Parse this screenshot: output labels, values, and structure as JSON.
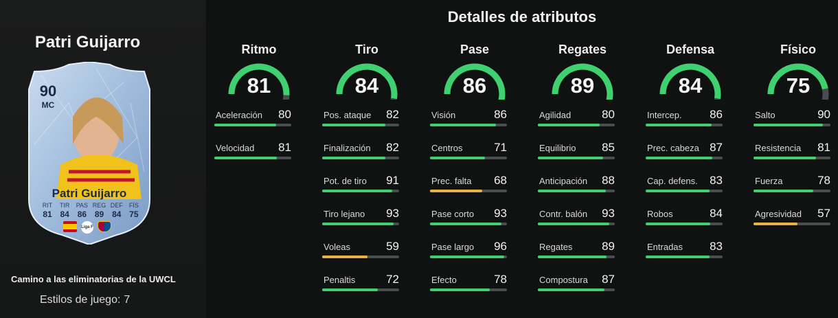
{
  "player": {
    "name": "Patri Guijarro",
    "card": {
      "rating": "90",
      "position": "MC",
      "name": "Patri Guijarro",
      "stat_labels": [
        "RIT",
        "TIR",
        "PAS",
        "REG",
        "DEF",
        "FÍS"
      ],
      "stat_values": [
        "81",
        "84",
        "86",
        "89",
        "84",
        "75"
      ],
      "league_logo_text": "Liga F"
    },
    "objective": "Camino a las eliminatorias de la UWCL",
    "playstyles_label": "Estilos de juego:",
    "playstyles_value": "7"
  },
  "title": "Detalles de atributos",
  "colors": {
    "high": "#3fd070",
    "mid": "#e6b43c",
    "track": "#4a4d4d",
    "background": "#101111"
  },
  "categories": [
    {
      "name": "Ritmo",
      "value": 81,
      "stats": [
        {
          "name": "Aceleración",
          "value": 80
        },
        {
          "name": "Velocidad",
          "value": 81
        }
      ]
    },
    {
      "name": "Tiro",
      "value": 84,
      "stats": [
        {
          "name": "Pos. ataque",
          "value": 82
        },
        {
          "name": "Finalización",
          "value": 82
        },
        {
          "name": "Pot. de tiro",
          "value": 91
        },
        {
          "name": "Tiro lejano",
          "value": 93
        },
        {
          "name": "Voleas",
          "value": 59
        },
        {
          "name": "Penaltis",
          "value": 72
        }
      ]
    },
    {
      "name": "Pase",
      "value": 86,
      "stats": [
        {
          "name": "Visión",
          "value": 86
        },
        {
          "name": "Centros",
          "value": 71
        },
        {
          "name": "Prec. falta",
          "value": 68
        },
        {
          "name": "Pase corto",
          "value": 93
        },
        {
          "name": "Pase largo",
          "value": 96
        },
        {
          "name": "Efecto",
          "value": 78
        }
      ]
    },
    {
      "name": "Regates",
      "value": 89,
      "stats": [
        {
          "name": "Agilidad",
          "value": 80
        },
        {
          "name": "Equilibrio",
          "value": 85
        },
        {
          "name": "Anticipación",
          "value": 88
        },
        {
          "name": "Contr. balón",
          "value": 93
        },
        {
          "name": "Regates",
          "value": 89
        },
        {
          "name": "Compostura",
          "value": 87
        }
      ]
    },
    {
      "name": "Defensa",
      "value": 84,
      "stats": [
        {
          "name": "Intercep.",
          "value": 86
        },
        {
          "name": "Prec. cabeza",
          "value": 87
        },
        {
          "name": "Cap. defens.",
          "value": 83
        },
        {
          "name": "Robos",
          "value": 84
        },
        {
          "name": "Entradas",
          "value": 83
        }
      ]
    },
    {
      "name": "Físico",
      "value": 75,
      "stats": [
        {
          "name": "Salto",
          "value": 90
        },
        {
          "name": "Resistencia",
          "value": 81
        },
        {
          "name": "Fuerza",
          "value": 78
        },
        {
          "name": "Agresividad",
          "value": 57
        }
      ]
    }
  ]
}
